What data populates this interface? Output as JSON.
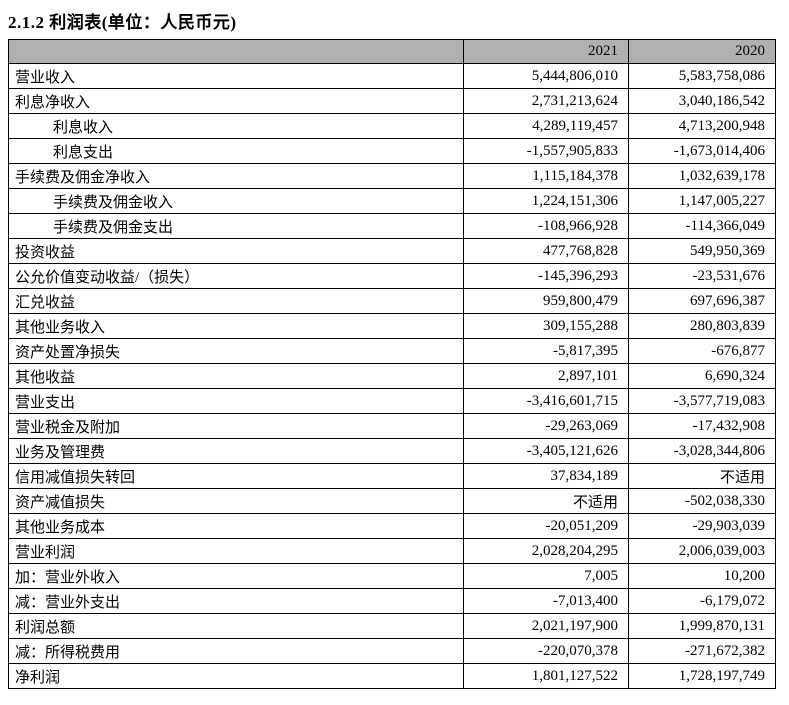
{
  "page": {
    "title": "2.1.2 利润表(单位：人民币元)"
  },
  "table": {
    "header_bg": "#b0b0b0",
    "columns": [
      "",
      "2021",
      "2020"
    ],
    "rows": [
      {
        "label": "营业收入",
        "indent": 0,
        "v2021": "5,444,806,010",
        "v2020": "5,583,758,086"
      },
      {
        "label": "利息净收入",
        "indent": 0,
        "v2021": "2,731,213,624",
        "v2020": "3,040,186,542"
      },
      {
        "label": "利息收入",
        "indent": 1,
        "v2021": "4,289,119,457",
        "v2020": "4,713,200,948"
      },
      {
        "label": "利息支出",
        "indent": 1,
        "v2021": "-1,557,905,833",
        "v2020": "-1,673,014,406"
      },
      {
        "label": "手续费及佣金净收入",
        "indent": 0,
        "v2021": "1,115,184,378",
        "v2020": "1,032,639,178"
      },
      {
        "label": "手续费及佣金收入",
        "indent": 1,
        "v2021": "1,224,151,306",
        "v2020": "1,147,005,227"
      },
      {
        "label": "手续费及佣金支出",
        "indent": 1,
        "v2021": "-108,966,928",
        "v2020": "-114,366,049"
      },
      {
        "label": "投资收益",
        "indent": 0,
        "v2021": "477,768,828",
        "v2020": "549,950,369"
      },
      {
        "label": "公允价值变动收益/（损失）",
        "indent": 0,
        "v2021": "-145,396,293",
        "v2020": "-23,531,676"
      },
      {
        "label": "汇兑收益",
        "indent": 0,
        "v2021": "959,800,479",
        "v2020": "697,696,387"
      },
      {
        "label": "其他业务收入",
        "indent": 0,
        "v2021": "309,155,288",
        "v2020": "280,803,839"
      },
      {
        "label": "资产处置净损失",
        "indent": 0,
        "v2021": "-5,817,395",
        "v2020": "-676,877"
      },
      {
        "label": "其他收益",
        "indent": 0,
        "v2021": "2,897,101",
        "v2020": "6,690,324"
      },
      {
        "label": "营业支出",
        "indent": 0,
        "v2021": "-3,416,601,715",
        "v2020": "-3,577,719,083"
      },
      {
        "label": "营业税金及附加",
        "indent": 0,
        "v2021": "-29,263,069",
        "v2020": "-17,432,908"
      },
      {
        "label": "业务及管理费",
        "indent": 0,
        "v2021": "-3,405,121,626",
        "v2020": "-3,028,344,806"
      },
      {
        "label": "信用减值损失转回",
        "indent": 0,
        "v2021": "37,834,189",
        "v2020": "不适用"
      },
      {
        "label": "资产减值损失",
        "indent": 0,
        "v2021": "不适用",
        "v2020": "-502,038,330"
      },
      {
        "label": "其他业务成本",
        "indent": 0,
        "v2021": "-20,051,209",
        "v2020": "-29,903,039"
      },
      {
        "label": "营业利润",
        "indent": 0,
        "v2021": "2,028,204,295",
        "v2020": "2,006,039,003"
      },
      {
        "label": "加：营业外收入",
        "indent": 0,
        "v2021": "7,005",
        "v2020": "10,200"
      },
      {
        "label": "减：营业外支出",
        "indent": 0,
        "v2021": "-7,013,400",
        "v2020": "-6,179,072"
      },
      {
        "label": "利润总额",
        "indent": 0,
        "v2021": "2,021,197,900",
        "v2020": "1,999,870,131"
      },
      {
        "label": "减：所得税费用",
        "indent": 0,
        "v2021": "-220,070,378",
        "v2020": "-271,672,382"
      },
      {
        "label": "净利润",
        "indent": 0,
        "v2021": "1,801,127,522",
        "v2020": "1,728,197,749"
      }
    ]
  }
}
